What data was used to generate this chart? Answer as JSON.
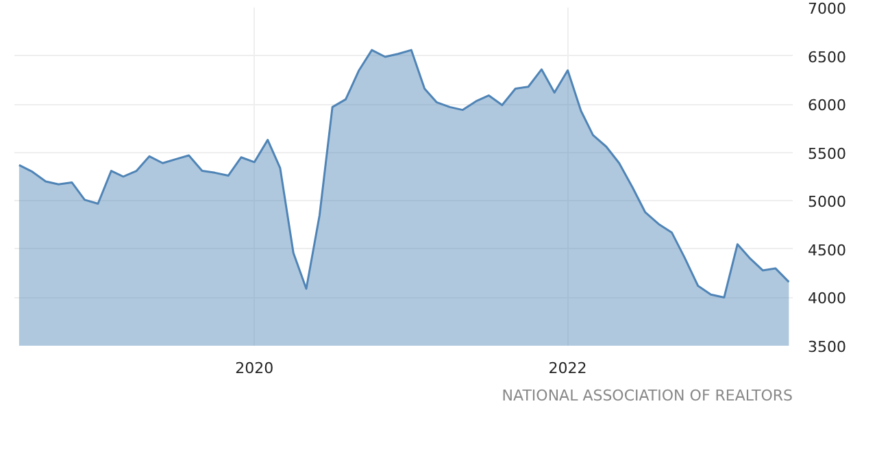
{
  "chart_data": {
    "type": "area",
    "x": [
      "2018-07",
      "2018-08",
      "2018-09",
      "2018-10",
      "2018-11",
      "2018-12",
      "2019-01",
      "2019-02",
      "2019-03",
      "2019-04",
      "2019-05",
      "2019-06",
      "2019-07",
      "2019-08",
      "2019-09",
      "2019-10",
      "2019-11",
      "2019-12",
      "2020-01",
      "2020-02",
      "2020-03",
      "2020-04",
      "2020-05",
      "2020-06",
      "2020-07",
      "2020-08",
      "2020-09",
      "2020-10",
      "2020-11",
      "2020-12",
      "2021-01",
      "2021-02",
      "2021-03",
      "2021-04",
      "2021-05",
      "2021-06",
      "2021-07",
      "2021-08",
      "2021-09",
      "2021-10",
      "2021-11",
      "2021-12",
      "2022-01",
      "2022-02",
      "2022-03",
      "2022-04",
      "2022-05",
      "2022-06",
      "2022-07",
      "2022-08",
      "2022-09",
      "2022-10",
      "2022-11",
      "2022-12",
      "2023-01",
      "2023-02",
      "2023-03",
      "2023-04",
      "2023-05",
      "2023-06"
    ],
    "series": [
      {
        "color": "#4f84b6",
        "values": [
          5370,
          5300,
          5200,
          5170,
          5190,
          5010,
          4970,
          5310,
          5250,
          5310,
          5460,
          5390,
          5430,
          5470,
          5310,
          5290,
          5260,
          5450,
          5400,
          5630,
          5340,
          4460,
          4090,
          4850,
          5970,
          6050,
          6350,
          6560,
          6490,
          6520,
          6560,
          6160,
          6020,
          5970,
          5940,
          6030,
          6090,
          5990,
          6160,
          6180,
          6360,
          6120,
          6350,
          5930,
          5680,
          5560,
          5390,
          5140,
          4880,
          4760,
          4670,
          4410,
          4120,
          4030,
          4000,
          4550,
          4410,
          4280,
          4300,
          4160
        ]
      }
    ],
    "xlim": [
      "2018-06-20",
      "2023-06-10"
    ],
    "xticks": [
      "2020",
      "2022"
    ],
    "ylim": [
      3500,
      7000
    ],
    "yticks": [
      3500,
      4000,
      4500,
      5000,
      5500,
      6000,
      6500,
      7000
    ],
    "grid": true,
    "annotations": [
      "NATIONAL ASSOCIATION OF REALTORS"
    ]
  }
}
